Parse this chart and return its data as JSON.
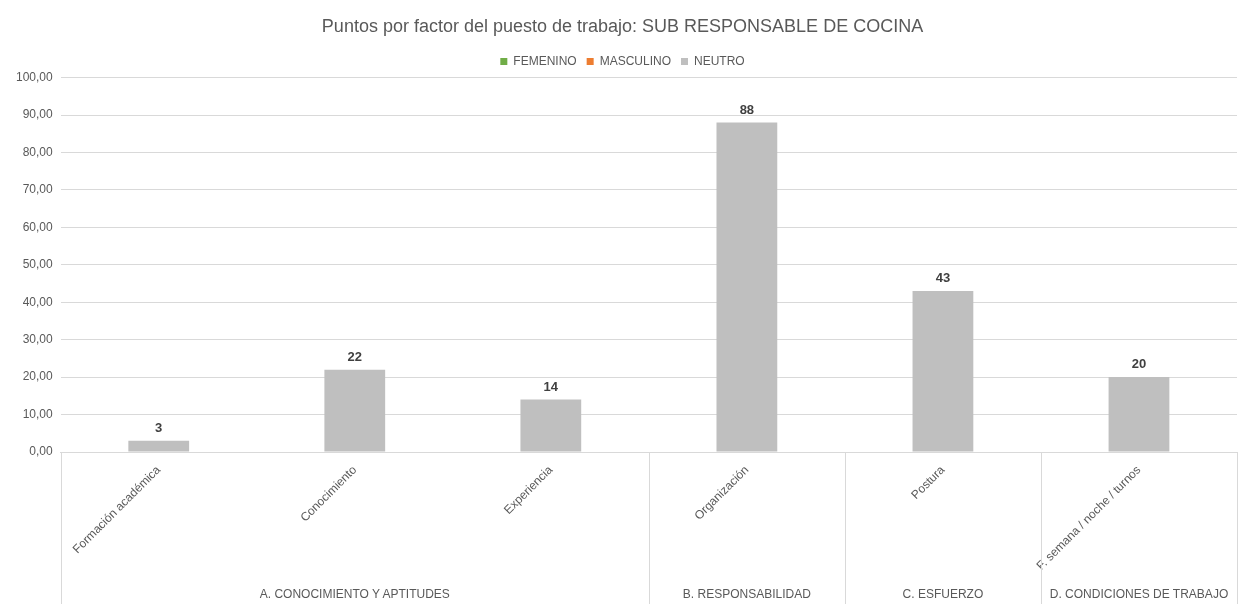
{
  "chart_data": {
    "type": "bar",
    "title": "Puntos por factor del puesto de trabajo: SUB RESPONSABLE DE COCINA",
    "categories": [
      "Formación académica",
      "Conocimiento",
      "Experiencia",
      "Organización",
      "Postura",
      "F. semana / noche / turnos"
    ],
    "series": [
      {
        "name": "FEMENINO",
        "color": "#70ad47",
        "values": [
          null,
          null,
          null,
          null,
          null,
          null
        ]
      },
      {
        "name": "MASCULINO",
        "color": "#ed7d31",
        "values": [
          null,
          null,
          null,
          null,
          null,
          null
        ]
      },
      {
        "name": "NEUTRO",
        "color": "#bfbfbf",
        "values": [
          3,
          22,
          14,
          88,
          43,
          20
        ]
      }
    ],
    "ylim": [
      0,
      100
    ],
    "yticks": [
      {
        "value": 0,
        "label": "0,00"
      },
      {
        "value": 10,
        "label": "10,00"
      },
      {
        "value": 20,
        "label": "20,00"
      },
      {
        "value": 30,
        "label": "30,00"
      },
      {
        "value": 40,
        "label": "40,00"
      },
      {
        "value": 50,
        "label": "50,00"
      },
      {
        "value": 60,
        "label": "60,00"
      },
      {
        "value": 70,
        "label": "70,00"
      },
      {
        "value": 80,
        "label": "80,00"
      },
      {
        "value": 90,
        "label": "90,00"
      },
      {
        "value": 100,
        "label": "100,00"
      }
    ],
    "grid": "y",
    "legend": "top",
    "data_labels": true,
    "annotations": [
      "A. CONOCIMIENTO Y APTITUDES",
      "B. RESPONSABILIDAD",
      "C. ESFUERZO",
      "D. CONDICIONES DE TRABAJO"
    ]
  }
}
